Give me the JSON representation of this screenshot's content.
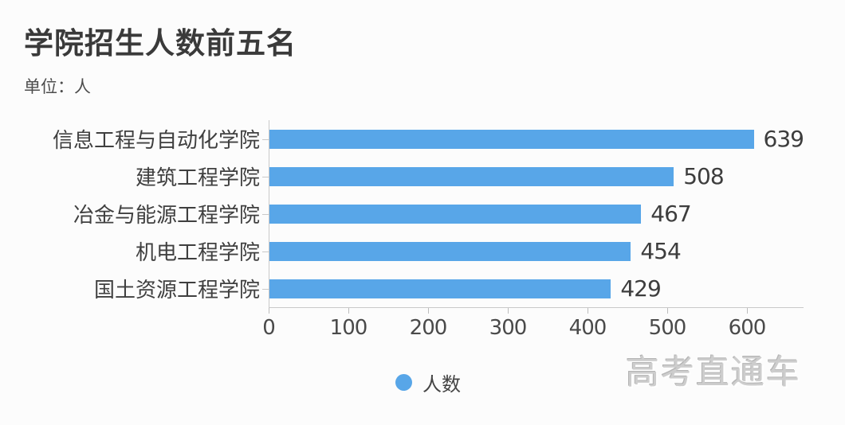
{
  "header": {
    "title": "学院招生人数前五名",
    "subtitle": "单位：人"
  },
  "legend": {
    "label": "人数"
  },
  "watermark": {
    "text": "高考直通车"
  },
  "colors": {
    "bar": "#58a6e8",
    "axis": "#c9c9c9",
    "title_text": "#3a3a3a",
    "label_text": "#3f3f3f",
    "background": "#fcfcfc",
    "watermark_text": "#cdcdcd"
  },
  "chart_data": {
    "type": "bar",
    "orientation": "horizontal",
    "title": "学院招生人数前五名",
    "unit_label": "单位：人",
    "categories": [
      "信息工程与自动化学院",
      "建筑工程学院",
      "冶金与能源工程学院",
      "机电工程学院",
      "国土资源工程学院"
    ],
    "values": [
      639,
      508,
      467,
      454,
      429
    ],
    "series_name": "人数",
    "xlabel": "",
    "ylabel": "",
    "xlim": [
      0,
      671
    ],
    "xticks": [
      0,
      100,
      200,
      300,
      400,
      500,
      600
    ],
    "grid": false,
    "legend_position": "bottom",
    "value_labels": "end-of-bar"
  }
}
